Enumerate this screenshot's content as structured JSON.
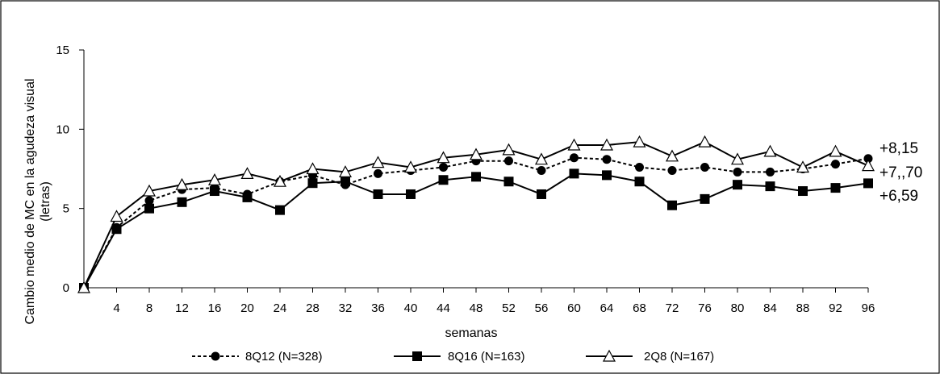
{
  "chart_data": {
    "type": "line",
    "title": "",
    "xlabel": "semanas",
    "ylabel": "Cambio medio de MC en la agudeza visual (letras)",
    "ylabel_lines": [
      "Cambio medio de MC en la agudeza visual",
      "(letras)"
    ],
    "xlim": [
      0,
      96
    ],
    "ylim": [
      0,
      15
    ],
    "y_ticks": [
      "0",
      "5",
      "10",
      "15"
    ],
    "x_ticks": [
      "4",
      "8",
      "12",
      "16",
      "20",
      "24",
      "28",
      "32",
      "36",
      "40",
      "44",
      "48",
      "52",
      "56",
      "60",
      "64",
      "68",
      "72",
      "76",
      "80",
      "84",
      "88",
      "92",
      "96"
    ],
    "grid": false,
    "legend_position": "bottom",
    "x": [
      0,
      4,
      8,
      12,
      16,
      20,
      24,
      28,
      32,
      36,
      40,
      44,
      48,
      52,
      56,
      60,
      64,
      68,
      72,
      76,
      80,
      84,
      88,
      92,
      96
    ],
    "series": [
      {
        "name": "8Q12 (N=328)",
        "line": "dashed",
        "marker": "circle",
        "values": [
          0,
          3.8,
          5.5,
          6.2,
          6.3,
          5.9,
          6.7,
          7.1,
          6.5,
          7.2,
          7.4,
          7.6,
          8.0,
          8.0,
          7.4,
          8.2,
          8.1,
          7.6,
          7.4,
          7.6,
          7.3,
          7.3,
          7.5,
          7.8,
          8.15
        ]
      },
      {
        "name": "8Q16 (N=163)",
        "line": "solid",
        "marker": "square",
        "values": [
          0,
          3.7,
          5.0,
          5.4,
          6.1,
          5.7,
          4.9,
          6.6,
          6.7,
          5.9,
          5.9,
          6.8,
          7.0,
          6.7,
          5.9,
          7.2,
          7.1,
          6.7,
          5.2,
          5.6,
          6.5,
          6.4,
          6.1,
          6.3,
          6.59
        ]
      },
      {
        "name": "2Q8 (N=167)",
        "line": "solid",
        "marker": "triangle",
        "values": [
          0,
          4.5,
          6.1,
          6.5,
          6.8,
          7.2,
          6.7,
          7.5,
          7.3,
          7.9,
          7.6,
          8.2,
          8.4,
          8.7,
          8.1,
          9.0,
          9.0,
          9.2,
          8.3,
          9.2,
          8.1,
          8.6,
          7.6,
          8.6,
          7.7
        ]
      }
    ],
    "end_labels": [
      "+8,15",
      "+7,,70",
      "+6,59"
    ]
  }
}
